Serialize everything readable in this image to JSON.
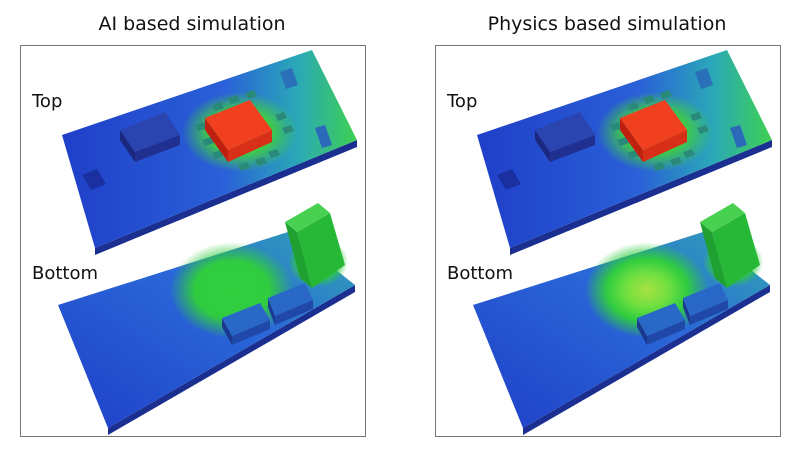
{
  "panels": [
    {
      "title": "AI based simulation",
      "top_label": "Top",
      "bottom_label": "Bottom"
    },
    {
      "title": "Physics based simulation",
      "top_label": "Top",
      "bottom_label": "Bottom"
    }
  ]
}
